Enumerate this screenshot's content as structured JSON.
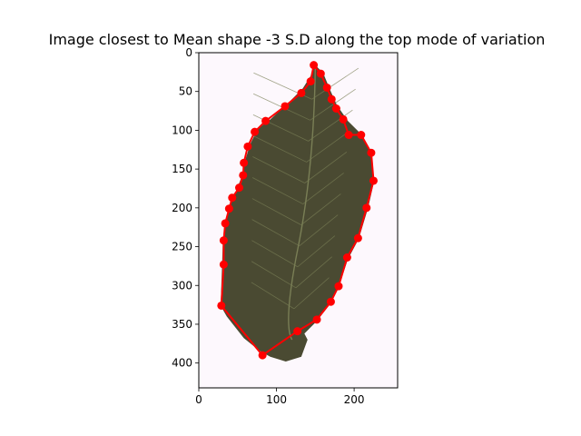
{
  "chart_data": {
    "type": "scatter",
    "title": "Image closest to Mean shape -3 S.D along the top mode of variation",
    "xlabel": "",
    "ylabel": "",
    "xlim": [
      0,
      256
    ],
    "ylim": [
      432,
      0
    ],
    "y_inverted": true,
    "grid": false,
    "xticks": [
      0,
      100,
      200
    ],
    "yticks": [
      0,
      50,
      100,
      150,
      200,
      250,
      300,
      350,
      400
    ],
    "background_image": "leaf",
    "colors": {
      "landmark": "#ff0000",
      "leaf": "#4a4a32",
      "vein": "#7a7f56",
      "paper": "#fdf8fd"
    },
    "series": [
      {
        "marker": "circle",
        "line": "closed-polyline",
        "x": [
          148,
          157,
          165,
          171,
          177,
          186,
          193,
          209,
          222,
          225,
          216,
          205,
          191,
          180,
          170,
          152,
          127,
          82,
          29,
          32,
          32,
          34,
          39,
          43,
          52,
          57,
          58,
          63,
          72,
          86,
          111,
          132,
          144
        ],
        "y": [
          16,
          27,
          45,
          60,
          72,
          86,
          106,
          106,
          129,
          165,
          200,
          239,
          264,
          301,
          321,
          344,
          359,
          390,
          326,
          273,
          242,
          220,
          201,
          187,
          174,
          158,
          142,
          121,
          102,
          88,
          69,
          52,
          37
        ]
      }
    ]
  }
}
